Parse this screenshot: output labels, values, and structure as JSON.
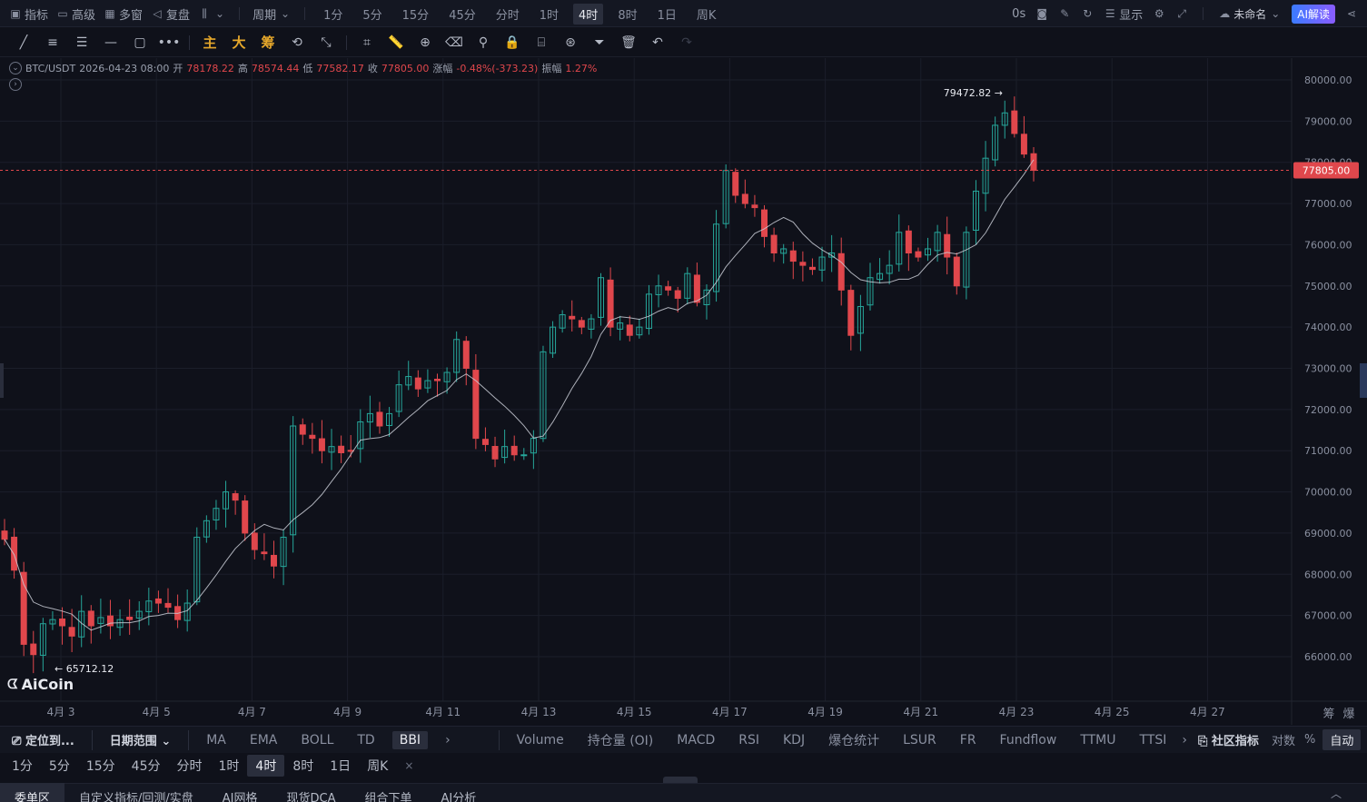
{
  "topbar": {
    "left_items": [
      {
        "label": "指标",
        "icon": "indicator-icon"
      },
      {
        "label": "高级",
        "icon": "window-icon"
      },
      {
        "label": "多窗",
        "icon": "grid-icon"
      },
      {
        "label": "复盘",
        "icon": "replay-icon"
      },
      {
        "label": "",
        "icon": "candle-type-icon"
      }
    ],
    "period_dropdown": "周期",
    "periods": [
      "1分",
      "5分",
      "15分",
      "45分",
      "分时",
      "1时",
      "4时",
      "8时",
      "1日",
      "周K"
    ],
    "active_period": "4时",
    "countdown": "0s",
    "display_label": "显示",
    "layout_name": "未命名",
    "ai_button": "AI解读"
  },
  "drawbar": {
    "gold_labels": [
      "主",
      "大",
      "筹"
    ]
  },
  "ohlc": {
    "symbol": "BTC/USDT",
    "datetime": "2026-04-23 08:00",
    "open_label": "开",
    "open": "78178.22",
    "high_label": "高",
    "high": "78574.44",
    "low_label": "低",
    "low": "77582.17",
    "close_label": "收",
    "close": "77805.00",
    "change_label": "涨幅",
    "change": "-0.48%(-373.23)",
    "amp_label": "振幅",
    "amp": "1.27%"
  },
  "logo": "AiCoin",
  "colors": {
    "up": "#26a69a",
    "down": "#e0474c",
    "bg": "#0f111a",
    "grid": "#1b1e2a",
    "price_tag": "#e0474c",
    "ma": "#c9ccd6"
  },
  "chart_data": {
    "type": "candlestick",
    "symbol": "BTC/USDT",
    "interval": "4时",
    "y_ticks": [
      80000,
      79000,
      78000,
      77000,
      76000,
      75000,
      74000,
      73000,
      72000,
      71000,
      70000,
      69000,
      68000,
      67000,
      66000
    ],
    "y_tick_labels": [
      "80000.00",
      "79000.00",
      "78000.00",
      "77000.00",
      "76000.00",
      "75000.00",
      "74000.00",
      "73000.00",
      "72000.00",
      "71000.00",
      "70000.00",
      "69000.00",
      "68000.00",
      "67000.00",
      "66000.00"
    ],
    "x_labels": [
      "4月 3",
      "4月 5",
      "4月 7",
      "4月 9",
      "4月 11",
      "4月 13",
      "4月 15",
      "4月 17",
      "4月 19",
      "4月 21",
      "4月 23",
      "4月 25",
      "4月 27"
    ],
    "last_price": "77805.00",
    "last_price_value": 77805,
    "max_label": "79472.82",
    "min_label": "65712.12",
    "closes": [
      68850,
      68100,
      66300,
      66050,
      66800,
      66900,
      66750,
      66500,
      67100,
      66750,
      66950,
      66750,
      66900,
      66900,
      67100,
      67350,
      67300,
      67200,
      66900,
      67300,
      68900,
      69300,
      69600,
      70000,
      69800,
      69000,
      68600,
      68500,
      68200,
      68900,
      71600,
      71400,
      71300,
      71000,
      71100,
      70950,
      71000,
      71700,
      71900,
      71600,
      71900,
      72600,
      72800,
      72500,
      72700,
      72700,
      72900,
      73700,
      73000,
      71300,
      71150,
      70800,
      71100,
      70900,
      70900,
      71300,
      73400,
      74000,
      74300,
      74200,
      74000,
      74200,
      75200,
      74000,
      74100,
      73800,
      74000,
      74800,
      75000,
      74900,
      74700,
      75300,
      74600,
      74900,
      76500,
      77800,
      77200,
      77000,
      76900,
      76200,
      75800,
      75900,
      75600,
      75500,
      75400,
      75700,
      75800,
      74900,
      73800,
      74500,
      75200,
      75300,
      75500,
      76300,
      75800,
      75700,
      75900,
      76300,
      75700,
      75000,
      76300,
      77300,
      78100,
      78900,
      79200,
      78700,
      78200,
      77805
    ],
    "ma_description": "moving average line"
  },
  "indbar": {
    "locate": "定位到...",
    "date_range": "日期范围",
    "main_indicators": [
      "MA",
      "EMA",
      "BOLL",
      "TD",
      "BBI"
    ],
    "active_main": "BBI",
    "sub_indicators": [
      "Volume",
      "持仓量 (OI)",
      "MACD",
      "RSI",
      "KDJ",
      "爆仓统计",
      "LSUR",
      "FR",
      "Fundflow",
      "TTMU",
      "TTSI"
    ],
    "community": "社区指标",
    "log": "对数",
    "percent": "%",
    "auto": "自动"
  },
  "periodbar": {
    "periods": [
      "1分",
      "5分",
      "15分",
      "45分",
      "分时",
      "1时",
      "4时",
      "8时",
      "1日",
      "周K"
    ],
    "active": "4时",
    "close": "×"
  },
  "bottom_tabs": [
    "委单区",
    "自定义指标/回测/实盘",
    "AI网格",
    "现货DCA",
    "组合下单",
    "AI分析"
  ],
  "bottom_active": "委单区",
  "chart_corner": [
    "筹",
    "爆"
  ]
}
